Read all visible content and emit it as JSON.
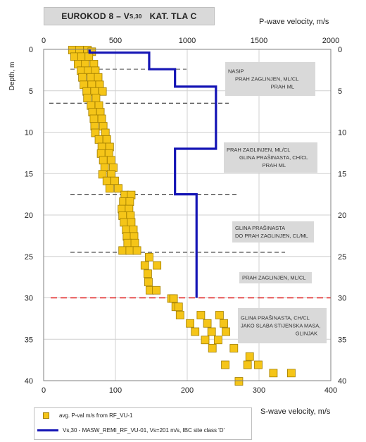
{
  "chart_data": {
    "type": "scatter",
    "title": "EUROKOD 8 – Vs,30    KAT. TLA  C",
    "top_axis": {
      "label": "P-wave velocity,  m/s",
      "range": [
        0,
        2000
      ],
      "ticks": [
        "0",
        "500",
        "1000",
        "1500",
        "2000"
      ]
    },
    "bottom_axis": {
      "label": "S-wave velocity,  m/s",
      "range": [
        0,
        400
      ],
      "ticks": [
        "0",
        "100",
        "200",
        "300",
        "400"
      ]
    },
    "left_axis": {
      "label": "Depth, m",
      "range": [
        0,
        40
      ],
      "reversed": true,
      "ticks": [
        "0",
        "5",
        "10",
        "15",
        "20",
        "25",
        "30",
        "35",
        "40"
      ]
    },
    "right_axis": {
      "ticks": [
        "0",
        "5",
        "10",
        "15",
        "20",
        "25",
        "30",
        "35",
        "40"
      ]
    },
    "grid": true,
    "legend_position": "bottom",
    "series": [
      {
        "name": "avg. P-val  m/s from RF_VU-1",
        "axis": "P-wave velocity",
        "marker": "square",
        "color": "#f5c518",
        "points": [
          {
            "depth": 0.0,
            "vp": 200
          },
          {
            "depth": 0.0,
            "vp": 250
          },
          {
            "depth": 0.0,
            "vp": 305
          },
          {
            "depth": 0.2,
            "vp": 335
          },
          {
            "depth": 0.8,
            "vp": 215
          },
          {
            "depth": 0.8,
            "vp": 265
          },
          {
            "depth": 0.8,
            "vp": 315
          },
          {
            "depth": 1.7,
            "vp": 240
          },
          {
            "depth": 1.7,
            "vp": 290
          },
          {
            "depth": 1.7,
            "vp": 350
          },
          {
            "depth": 2.5,
            "vp": 260
          },
          {
            "depth": 2.5,
            "vp": 310
          },
          {
            "depth": 2.5,
            "vp": 360
          },
          {
            "depth": 3.3,
            "vp": 270
          },
          {
            "depth": 3.3,
            "vp": 330
          },
          {
            "depth": 3.3,
            "vp": 380
          },
          {
            "depth": 4.2,
            "vp": 280
          },
          {
            "depth": 4.2,
            "vp": 335
          },
          {
            "depth": 4.2,
            "vp": 390
          },
          {
            "depth": 5.0,
            "vp": 300
          },
          {
            "depth": 5.0,
            "vp": 355
          },
          {
            "depth": 5.0,
            "vp": 410
          },
          {
            "depth": 5.8,
            "vp": 305
          },
          {
            "depth": 5.8,
            "vp": 365
          },
          {
            "depth": 6.7,
            "vp": 330
          },
          {
            "depth": 6.7,
            "vp": 385
          },
          {
            "depth": 7.5,
            "vp": 340
          },
          {
            "depth": 7.5,
            "vp": 395
          },
          {
            "depth": 8.3,
            "vp": 350
          },
          {
            "depth": 8.3,
            "vp": 405
          },
          {
            "depth": 9.2,
            "vp": 355
          },
          {
            "depth": 9.2,
            "vp": 415
          },
          {
            "depth": 10.0,
            "vp": 360
          },
          {
            "depth": 10.0,
            "vp": 430
          },
          {
            "depth": 10.8,
            "vp": 385
          },
          {
            "depth": 10.8,
            "vp": 440
          },
          {
            "depth": 11.7,
            "vp": 405
          },
          {
            "depth": 11.7,
            "vp": 460
          },
          {
            "depth": 12.5,
            "vp": 400
          },
          {
            "depth": 12.5,
            "vp": 455
          },
          {
            "depth": 13.3,
            "vp": 415
          },
          {
            "depth": 13.3,
            "vp": 470
          },
          {
            "depth": 14.2,
            "vp": 425
          },
          {
            "depth": 14.2,
            "vp": 485
          },
          {
            "depth": 15.0,
            "vp": 410
          },
          {
            "depth": 15.0,
            "vp": 470
          },
          {
            "depth": 15.8,
            "vp": 440
          },
          {
            "depth": 15.8,
            "vp": 495
          },
          {
            "depth": 16.7,
            "vp": 460
          },
          {
            "depth": 16.7,
            "vp": 520
          },
          {
            "depth": 17.5,
            "vp": 565
          },
          {
            "depth": 17.5,
            "vp": 610
          },
          {
            "depth": 18.3,
            "vp": 555
          },
          {
            "depth": 18.3,
            "vp": 600
          },
          {
            "depth": 19.2,
            "vp": 545
          },
          {
            "depth": 19.2,
            "vp": 595
          },
          {
            "depth": 20.0,
            "vp": 550
          },
          {
            "depth": 20.0,
            "vp": 605
          },
          {
            "depth": 20.8,
            "vp": 560
          },
          {
            "depth": 20.8,
            "vp": 610
          },
          {
            "depth": 21.7,
            "vp": 575
          },
          {
            "depth": 21.7,
            "vp": 625
          },
          {
            "depth": 22.5,
            "vp": 580
          },
          {
            "depth": 22.5,
            "vp": 630
          },
          {
            "depth": 23.3,
            "vp": 585
          },
          {
            "depth": 23.3,
            "vp": 635
          },
          {
            "depth": 24.2,
            "vp": 550
          },
          {
            "depth": 24.2,
            "vp": 600
          },
          {
            "depth": 24.2,
            "vp": 650
          },
          {
            "depth": 25.0,
            "vp": 735
          },
          {
            "depth": 26.0,
            "vp": 705
          },
          {
            "depth": 26.0,
            "vp": 790
          },
          {
            "depth": 27.0,
            "vp": 725
          },
          {
            "depth": 28.0,
            "vp": 730
          },
          {
            "depth": 29.0,
            "vp": 740
          },
          {
            "depth": 29.0,
            "vp": 785
          },
          {
            "depth": 30.0,
            "vp": 890
          },
          {
            "depth": 30.0,
            "vp": 905
          },
          {
            "depth": 31.0,
            "vp": 920
          },
          {
            "depth": 31.0,
            "vp": 940
          },
          {
            "depth": 32.0,
            "vp": 950
          },
          {
            "depth": 32.0,
            "vp": 1095
          },
          {
            "depth": 32.0,
            "vp": 1225
          },
          {
            "depth": 33.0,
            "vp": 1020
          },
          {
            "depth": 33.0,
            "vp": 1140
          },
          {
            "depth": 33.0,
            "vp": 1255
          },
          {
            "depth": 34.0,
            "vp": 1055
          },
          {
            "depth": 34.0,
            "vp": 1170
          },
          {
            "depth": 34.0,
            "vp": 1270
          },
          {
            "depth": 35.0,
            "vp": 1125
          },
          {
            "depth": 35.0,
            "vp": 1215
          },
          {
            "depth": 36.0,
            "vp": 1175
          },
          {
            "depth": 36.0,
            "vp": 1325
          },
          {
            "depth": 37.0,
            "vp": 1435
          },
          {
            "depth": 38.0,
            "vp": 1265
          },
          {
            "depth": 38.0,
            "vp": 1420
          },
          {
            "depth": 38.0,
            "vp": 1495
          },
          {
            "depth": 39.0,
            "vp": 1600
          },
          {
            "depth": 39.0,
            "vp": 1725
          },
          {
            "depth": 40.0,
            "vp": 1360
          }
        ]
      },
      {
        "name": "Vs,30 - MASW_REMI_RF_VU-01, Vs=201 m/s, IBC site class 'D'",
        "axis": "S-wave velocity",
        "style": "step-line",
        "color": "#1515b5",
        "segments": [
          {
            "from_depth": 0,
            "to_depth": 0.4,
            "vs": 64
          },
          {
            "from_depth": 0.4,
            "to_depth": 2.4,
            "vs": 147
          },
          {
            "from_depth": 2.4,
            "to_depth": 4.5,
            "vs": 183
          },
          {
            "from_depth": 4.5,
            "to_depth": 12.0,
            "vs": 240
          },
          {
            "from_depth": 12.0,
            "to_depth": 17.5,
            "vs": 183
          },
          {
            "from_depth": 17.5,
            "to_depth": 30.0,
            "vs": 213
          }
        ]
      }
    ],
    "boundaries": [
      {
        "depth": 2.4,
        "style": "dashed",
        "color": "#7f7f7f"
      },
      {
        "depth": 6.5,
        "style": "dashed",
        "color": "#404040"
      },
      {
        "depth": 17.5,
        "style": "dashed",
        "color": "#404040"
      },
      {
        "depth": 24.5,
        "style": "dashed",
        "color": "#404040"
      },
      {
        "depth": 30.0,
        "style": "dashed",
        "color": "#e02020"
      }
    ],
    "annotations": [
      {
        "depth": 4.0,
        "lines": [
          "NASIP",
          "PRAH ZAGLINJEN, ML/CL",
          "PRAH ML"
        ]
      },
      {
        "depth": 13.0,
        "lines": [
          "PRAH ZAGLINJEN, ML/CL",
          "GLINA PRAŠINASTA, CH/CL",
          "PRAH ML"
        ]
      },
      {
        "depth": 22.0,
        "lines": [
          "GLINA PRAŠINASTA",
          "DO PRAH ZAGLINJEN, CL/ML"
        ]
      },
      {
        "depth": 27.9,
        "lines": [
          "PRAH ZAGLINJEN, ML/CL"
        ]
      },
      {
        "depth": 33.7,
        "lines": [
          "GLINA PRAŠINASTA, CH/CL",
          "JAKO SLABA STIJENSKA MASA,",
          "GLINJAK"
        ]
      }
    ]
  },
  "legend": {
    "item1": "avg. P-val  m/s from RF_VU-1",
    "item2": "Vs,30 - MASW_REMI_RF_VU-01, Vs=201 m/s, IBC site class 'D'"
  },
  "title": {
    "main": "EUROKOD 8 – V",
    "sub": "S,30",
    "rest": "KAT. TLA  C"
  }
}
